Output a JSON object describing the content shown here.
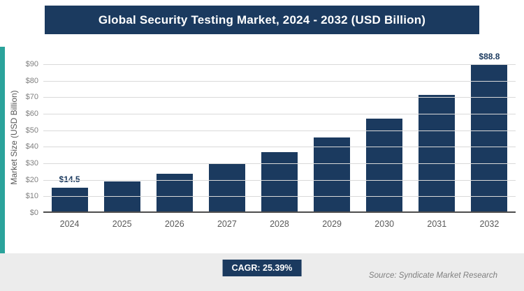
{
  "title": "Global Security Testing Market, 2024 - 2032 (USD Billion)",
  "chart_data": {
    "type": "bar",
    "categories": [
      "2024",
      "2025",
      "2026",
      "2027",
      "2028",
      "2029",
      "2030",
      "2031",
      "2032"
    ],
    "values": [
      14.5,
      18.2,
      22.8,
      28.6,
      35.8,
      44.9,
      56.3,
      70.6,
      88.8
    ],
    "data_labels": [
      "$14.5",
      "",
      "",
      "",
      "",
      "",
      "",
      "",
      "$88.8"
    ],
    "title": "Global Security Testing Market, 2024 - 2032 (USD Billion)",
    "xlabel": "",
    "ylabel": "Market Size (USD Billion)",
    "ylim": [
      0,
      90
    ],
    "ytick_step": 10,
    "ytick_prefix": "$",
    "grid": true,
    "legend": "none",
    "bar_color": "#1B3A5F"
  },
  "footer": {
    "cagr_label": "CAGR: 25.39%",
    "source": "Source: Syndicate Market Research"
  },
  "colors": {
    "banner": "#1B3A5F",
    "accent_strip": "#2BA39B",
    "bar": "#1B3A5F",
    "gridline": "#d9d9d9",
    "badge": "#1B3A5F"
  }
}
